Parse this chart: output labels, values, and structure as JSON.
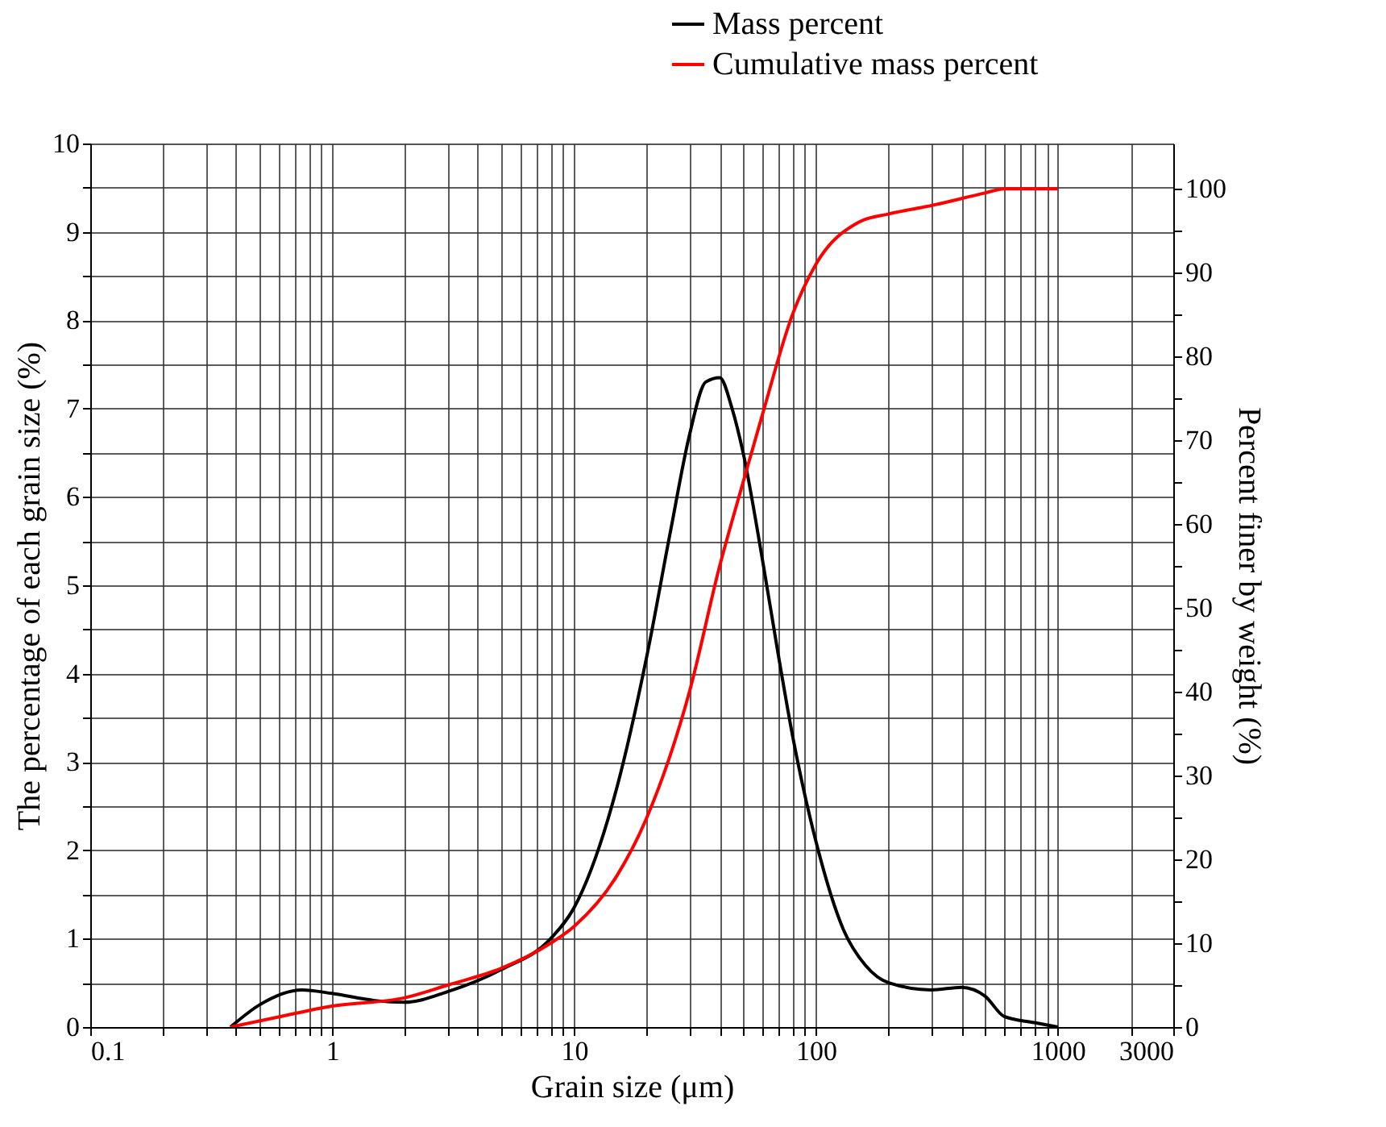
{
  "chart_data": {
    "type": "line",
    "xlabel": "Grain size (μm)",
    "ylabel": "The percentage of each grain size (%)",
    "y2label": "Percent finer by weight (%)",
    "log": "x",
    "grid": true,
    "legend": "top",
    "marker": "none",
    "line_style": "solid",
    "xlim": [
      0.1,
      3000
    ],
    "xticks": [
      0.1,
      {
        "value": 0.2,
        "label": null
      },
      {
        "value": 0.3,
        "label": null
      },
      {
        "value": 0.4,
        "label": null
      },
      {
        "value": 0.5,
        "label": null
      },
      {
        "value": 0.6,
        "label": null
      },
      {
        "value": 0.7,
        "label": null
      },
      {
        "value": 0.8,
        "label": null
      },
      {
        "value": 0.9,
        "label": null
      },
      1,
      {
        "value": 2,
        "label": null
      },
      {
        "value": 3,
        "label": null
      },
      {
        "value": 4,
        "label": null
      },
      {
        "value": 5,
        "label": null
      },
      {
        "value": 6,
        "label": null
      },
      {
        "value": 7,
        "label": null
      },
      {
        "value": 8,
        "label": null
      },
      {
        "value": 9,
        "label": null
      },
      10,
      {
        "value": 20,
        "label": null
      },
      {
        "value": 30,
        "label": null
      },
      {
        "value": 40,
        "label": null
      },
      {
        "value": 50,
        "label": null
      },
      {
        "value": 60,
        "label": null
      },
      {
        "value": 70,
        "label": null
      },
      {
        "value": 80,
        "label": null
      },
      {
        "value": 90,
        "label": null
      },
      100,
      {
        "value": 200,
        "label": null
      },
      {
        "value": 300,
        "label": null
      },
      {
        "value": 400,
        "label": null
      },
      {
        "value": 500,
        "label": null
      },
      {
        "value": 600,
        "label": null
      },
      {
        "value": 700,
        "label": null
      },
      {
        "value": 800,
        "label": null
      },
      {
        "value": 900,
        "label": null
      },
      1000,
      {
        "value": 2000,
        "label": null
      },
      3000
    ],
    "ylim": [
      0,
      10
    ],
    "yticks": [
      0,
      {
        "value": 0.5,
        "label": null
      },
      1,
      {
        "value": 1.5,
        "label": null
      },
      2,
      {
        "value": 2.5,
        "label": null
      },
      3,
      {
        "value": 3.5,
        "label": null
      },
      4,
      {
        "value": 4.5,
        "label": null
      },
      5,
      {
        "value": 5.5,
        "label": null
      },
      6,
      {
        "value": 6.5,
        "label": null
      },
      7,
      {
        "value": 7.5,
        "label": null
      },
      8,
      {
        "value": 8.5,
        "label": null
      },
      9,
      {
        "value": 9.5,
        "label": null
      },
      10
    ],
    "y2lim": [
      0,
      105.4
    ],
    "y2ticks": [
      0,
      {
        "value": 5,
        "label": null
      },
      10,
      {
        "value": 15,
        "label": null
      },
      20,
      {
        "value": 25,
        "label": null
      },
      30,
      {
        "value": 35,
        "label": null
      },
      40,
      {
        "value": 45,
        "label": null
      },
      50,
      {
        "value": 55,
        "label": null
      },
      60,
      {
        "value": 65,
        "label": null
      },
      70,
      {
        "value": 75,
        "label": null
      },
      80,
      {
        "value": 85,
        "label": null
      },
      90,
      {
        "value": 95,
        "label": null
      },
      100
    ],
    "series": [
      {
        "name": "Mass percent",
        "color": "#000000",
        "x": [
          0.38,
          0.5,
          0.75,
          1.0,
          1.5,
          2,
          3,
          5,
          8,
          10,
          15,
          20,
          25,
          30,
          35,
          40,
          45,
          50,
          60,
          70,
          80,
          100,
          130,
          160,
          200,
          300,
          400,
          500,
          600,
          800,
          1000
        ],
        "values": [
          0,
          0.25,
          0.42,
          0.38,
          0.3,
          0.28,
          0.4,
          0.65,
          1.0,
          1.35,
          2.7,
          4.2,
          5.6,
          6.7,
          7.3,
          7.35,
          7.0,
          6.5,
          5.3,
          4.2,
          3.3,
          2.1,
          1.1,
          0.7,
          0.5,
          0.42,
          0.45,
          0.35,
          0.12,
          0.05,
          0
        ]
      },
      {
        "name": "Cumulative mass percent",
        "color": "#ff0000",
        "axis": "y2",
        "x": [
          0.38,
          0.6,
          1,
          2,
          3,
          5,
          8,
          10,
          15,
          20,
          30,
          40,
          50,
          60,
          80,
          100,
          150,
          200,
          300,
          500,
          600,
          1000
        ],
        "values": [
          0,
          1.2,
          2.5,
          3.5,
          5,
          7,
          10,
          12,
          18,
          25,
          40,
          55,
          65,
          73,
          85,
          91,
          96,
          97,
          98,
          99.5,
          100,
          100
        ]
      }
    ]
  }
}
